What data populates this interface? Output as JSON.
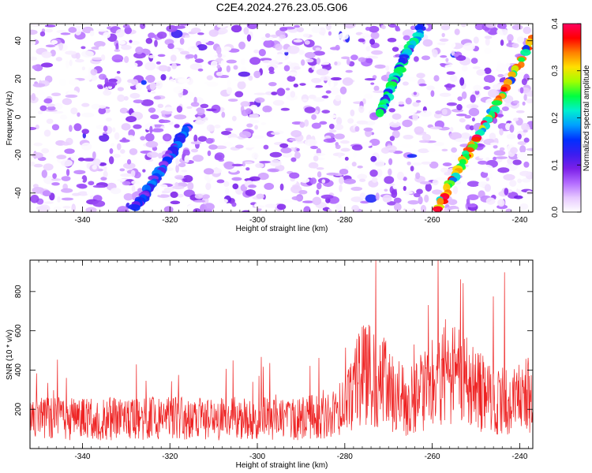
{
  "title": "C2E4.2024.276.23.05.G06",
  "colors": {
    "snr_line": "#ee2222",
    "colormap": [
      "#ffffff",
      "#e6c8ff",
      "#b36bff",
      "#7b1fe8",
      "#3a1df0",
      "#0030ff",
      "#00a0ff",
      "#00f0d0",
      "#00ff40",
      "#a0ff00",
      "#ffe000",
      "#ff8000",
      "#ff0000",
      "#ff0060"
    ]
  },
  "chart_data": [
    {
      "type": "heatmap",
      "xlabel": "Height of straight line (km)",
      "ylabel": "Frequency (Hz)",
      "xlim": [
        -352,
        -237
      ],
      "ylim": [
        -50,
        49
      ],
      "xticks": [
        -340,
        -320,
        -300,
        -280,
        -260,
        -240
      ],
      "yticks": [
        -40,
        -20,
        0,
        20,
        40
      ],
      "colorbar": {
        "label": "Normalized spectral amplitude",
        "range": [
          0.0,
          0.4
        ],
        "ticks": [
          "0.0",
          "0.1",
          "0.2",
          "0.3",
          "0.4"
        ]
      },
      "features": [
        {
          "points": [
            [
              -262,
              49
            ],
            [
              -266,
              33
            ],
            [
              -269,
              17
            ],
            [
              -272,
              2
            ]
          ],
          "peak": 0.25
        },
        {
          "points": [
            [
              -237,
              41
            ],
            [
              -246,
              3
            ],
            [
              -252,
              -20
            ],
            [
              -259,
              -48
            ]
          ],
          "peak": 0.4
        },
        {
          "points": [
            [
              -316,
              -6
            ],
            [
              -320,
              -20
            ],
            [
              -324,
              -35
            ],
            [
              -328,
              -48
            ]
          ],
          "peak": 0.18
        }
      ]
    },
    {
      "type": "line",
      "xlabel": "Height of straight line (km)",
      "ylabel": "SNR (10 * v/v)",
      "xlim": [
        -352,
        -237
      ],
      "ylim": [
        0,
        960
      ],
      "xticks": [
        -340,
        -320,
        -300,
        -280,
        -260,
        -240
      ],
      "yticks": [
        200,
        400,
        600,
        800
      ],
      "series_profile": {
        "baseline": 170,
        "segments": [
          [
            -352,
            170
          ],
          [
            -290,
            170
          ],
          [
            -280,
            230
          ],
          [
            -276,
            450
          ],
          [
            -270,
            360
          ],
          [
            -266,
            260
          ],
          [
            -262,
            330
          ],
          [
            -257,
            430
          ],
          [
            -253,
            380
          ],
          [
            -248,
            300
          ],
          [
            -243,
            260
          ],
          [
            -237,
            310
          ]
        ],
        "max": 960
      }
    }
  ]
}
